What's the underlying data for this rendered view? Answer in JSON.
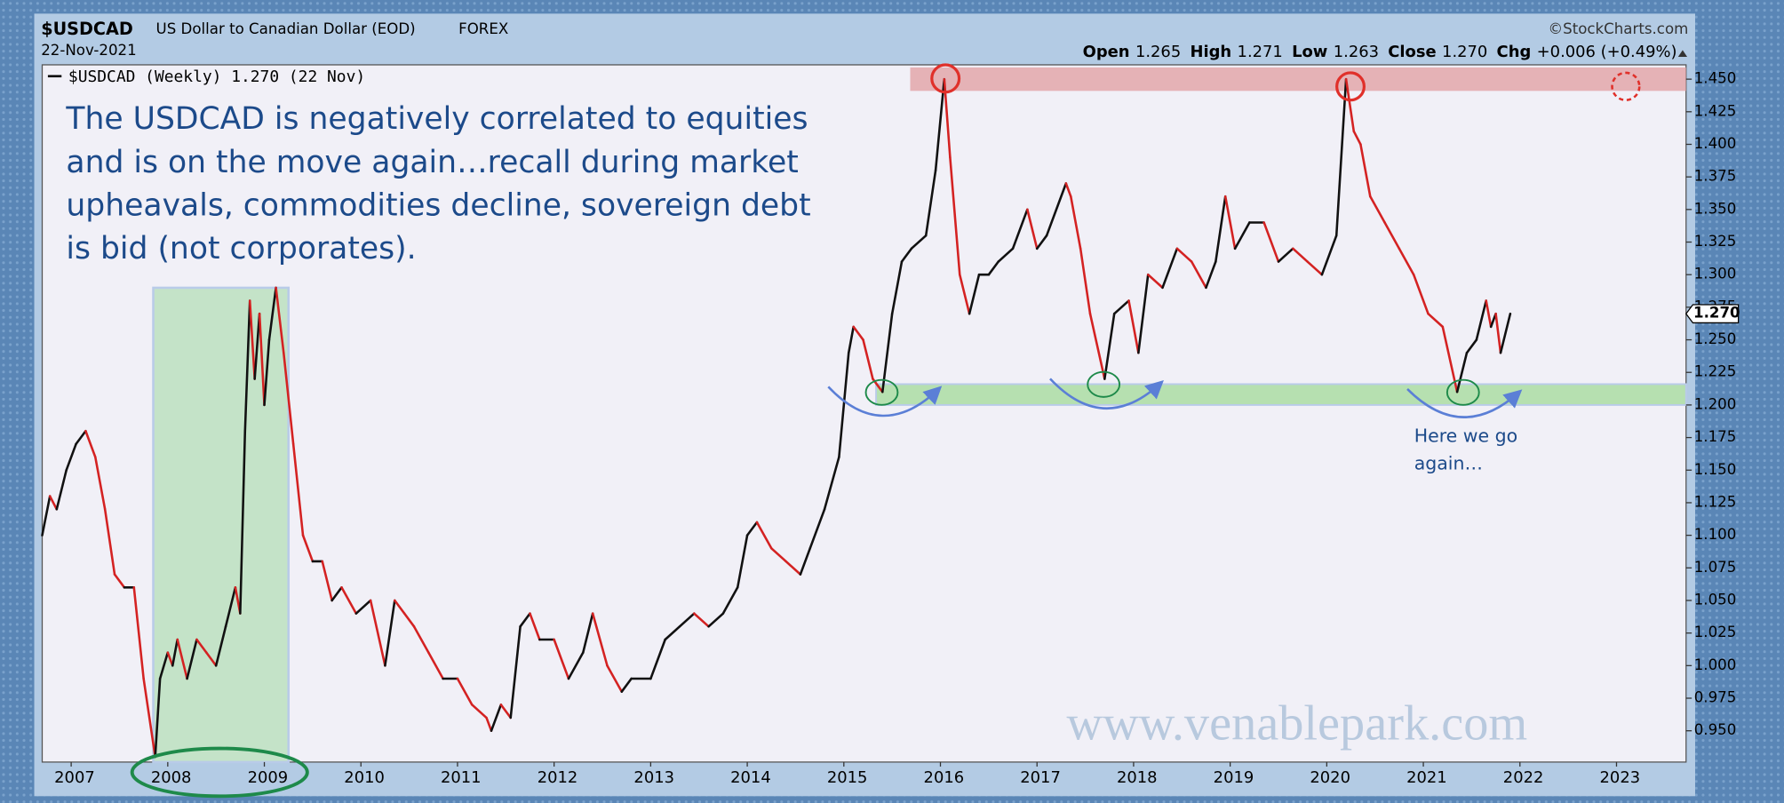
{
  "chart_data": {
    "type": "line",
    "symbol": "$USDCAD",
    "description": "US Dollar to Canadian Dollar (EOD)",
    "exchange": "FOREX",
    "date": "22-Nov-2021",
    "source": "©StockCharts.com",
    "quote": [
      {
        "label": "Open",
        "value": "1.265"
      },
      {
        "label": "High",
        "value": "1.271"
      },
      {
        "label": "Low",
        "value": "1.263"
      },
      {
        "label": "Close",
        "value": "1.270"
      },
      {
        "label": "Chg",
        "value": "+0.006 (+0.49%)"
      }
    ],
    "annotation": [
      "The USDCAD is negatively correlated to equities",
      "and is on the move again…recall during market",
      "upheavals, commodities decline, sovereign debt",
      "is bid (not corporates)."
    ],
    "note": [
      "Here we go",
      "again…"
    ],
    "watermark": "www.venablepark.com",
    "last_label": "1.270",
    "up_color": "#111111",
    "down_color": "#d42222",
    "resistance_band": [
      1.441,
      1.459
    ],
    "support_band": [
      1.2,
      1.216
    ],
    "highlight_x": [
      2007.85,
      2009.25
    ],
    "xlim": [
      2006.7,
      2023.72
    ],
    "ylim": [
      0.926,
      1.461
    ],
    "xticks": [
      2007,
      2008,
      2009,
      2010,
      2011,
      2012,
      2013,
      2014,
      2015,
      2016,
      2017,
      2018,
      2019,
      2020,
      2021,
      2022,
      2023
    ],
    "yticks": [
      {
        "value": 0.95,
        "label": "0.950"
      },
      {
        "value": 0.975,
        "label": "0.975"
      },
      {
        "value": 1.0,
        "label": "1.000"
      },
      {
        "value": 1.025,
        "label": "1.025"
      },
      {
        "value": 1.05,
        "label": "1.050"
      },
      {
        "value": 1.075,
        "label": "1.075"
      },
      {
        "value": 1.1,
        "label": "1.100"
      },
      {
        "value": 1.125,
        "label": "1.125"
      },
      {
        "value": 1.15,
        "label": "1.150"
      },
      {
        "value": 1.175,
        "label": "1.175"
      },
      {
        "value": 1.2,
        "label": "1.200"
      },
      {
        "value": 1.225,
        "label": "1.225"
      },
      {
        "value": 1.25,
        "label": "1.250"
      },
      {
        "value": 1.275,
        "label": "1.275"
      },
      {
        "value": 1.3,
        "label": "1.300"
      },
      {
        "value": 1.325,
        "label": "1.325"
      },
      {
        "value": 1.35,
        "label": "1.350"
      },
      {
        "value": 1.375,
        "label": "1.375"
      },
      {
        "value": 1.4,
        "label": "1.400"
      },
      {
        "value": 1.425,
        "label": "1.425"
      },
      {
        "value": 1.45,
        "label": "1.450"
      }
    ],
    "grid": false,
    "x": [
      2006.7,
      2006.78,
      2006.85,
      2006.95,
      2007.05,
      2007.15,
      2007.25,
      2007.35,
      2007.45,
      2007.55,
      2007.65,
      2007.75,
      2007.87,
      2007.92,
      2008.0,
      2008.05,
      2008.1,
      2008.2,
      2008.3,
      2008.4,
      2008.5,
      2008.6,
      2008.7,
      2008.75,
      2008.8,
      2008.85,
      2008.9,
      2008.95,
      2009.0,
      2009.05,
      2009.12,
      2009.2,
      2009.3,
      2009.4,
      2009.5,
      2009.6,
      2009.7,
      2009.8,
      2009.95,
      2010.1,
      2010.25,
      2010.35,
      2010.45,
      2010.55,
      2010.7,
      2010.85,
      2011.0,
      2011.15,
      2011.3,
      2011.35,
      2011.45,
      2011.55,
      2011.65,
      2011.75,
      2011.85,
      2012.0,
      2012.15,
      2012.3,
      2012.4,
      2012.55,
      2012.7,
      2012.8,
      2013.0,
      2013.15,
      2013.3,
      2013.45,
      2013.6,
      2013.75,
      2013.9,
      2014.0,
      2014.1,
      2014.25,
      2014.4,
      2014.55,
      2014.65,
      2014.8,
      2014.95,
      2015.05,
      2015.1,
      2015.2,
      2015.3,
      2015.4,
      2015.5,
      2015.6,
      2015.7,
      2015.85,
      2015.95,
      2016.04,
      2016.1,
      2016.2,
      2016.3,
      2016.4,
      2016.5,
      2016.6,
      2016.75,
      2016.9,
      2017.0,
      2017.1,
      2017.3,
      2017.35,
      2017.45,
      2017.55,
      2017.7,
      2017.8,
      2017.95,
      2018.05,
      2018.15,
      2018.3,
      2018.45,
      2018.6,
      2018.75,
      2018.85,
      2018.95,
      2019.05,
      2019.2,
      2019.35,
      2019.5,
      2019.65,
      2019.8,
      2019.95,
      2020.1,
      2020.2,
      2020.28,
      2020.35,
      2020.45,
      2020.6,
      2020.75,
      2020.9,
      2021.05,
      2021.2,
      2021.35,
      2021.45,
      2021.55,
      2021.65,
      2021.7,
      2021.75,
      2021.8,
      2021.9
    ],
    "series": [
      {
        "name": "$USDCAD (Weekly) 1.270 (22 Nov)",
        "color": "#d42222",
        "values": [
          1.1,
          1.13,
          1.12,
          1.15,
          1.17,
          1.18,
          1.16,
          1.12,
          1.07,
          1.06,
          1.06,
          0.99,
          0.93,
          0.99,
          1.01,
          1.0,
          1.02,
          0.99,
          1.02,
          1.01,
          1.0,
          1.03,
          1.06,
          1.04,
          1.18,
          1.28,
          1.22,
          1.27,
          1.2,
          1.25,
          1.29,
          1.24,
          1.17,
          1.1,
          1.08,
          1.08,
          1.05,
          1.06,
          1.04,
          1.05,
          1.0,
          1.05,
          1.04,
          1.03,
          1.01,
          0.99,
          0.99,
          0.97,
          0.96,
          0.95,
          0.97,
          0.96,
          1.03,
          1.04,
          1.02,
          1.02,
          0.99,
          1.01,
          1.04,
          1.0,
          0.98,
          0.99,
          0.99,
          1.02,
          1.03,
          1.04,
          1.03,
          1.04,
          1.06,
          1.1,
          1.11,
          1.09,
          1.08,
          1.07,
          1.09,
          1.12,
          1.16,
          1.24,
          1.26,
          1.25,
          1.22,
          1.21,
          1.27,
          1.31,
          1.32,
          1.33,
          1.38,
          1.45,
          1.39,
          1.3,
          1.27,
          1.3,
          1.3,
          1.31,
          1.32,
          1.35,
          1.32,
          1.33,
          1.37,
          1.36,
          1.32,
          1.27,
          1.22,
          1.27,
          1.28,
          1.24,
          1.3,
          1.29,
          1.32,
          1.31,
          1.29,
          1.31,
          1.36,
          1.32,
          1.34,
          1.34,
          1.31,
          1.32,
          1.31,
          1.3,
          1.33,
          1.45,
          1.41,
          1.4,
          1.36,
          1.34,
          1.32,
          1.3,
          1.27,
          1.26,
          1.21,
          1.24,
          1.25,
          1.28,
          1.26,
          1.27,
          1.24,
          1.27
        ]
      }
    ]
  }
}
